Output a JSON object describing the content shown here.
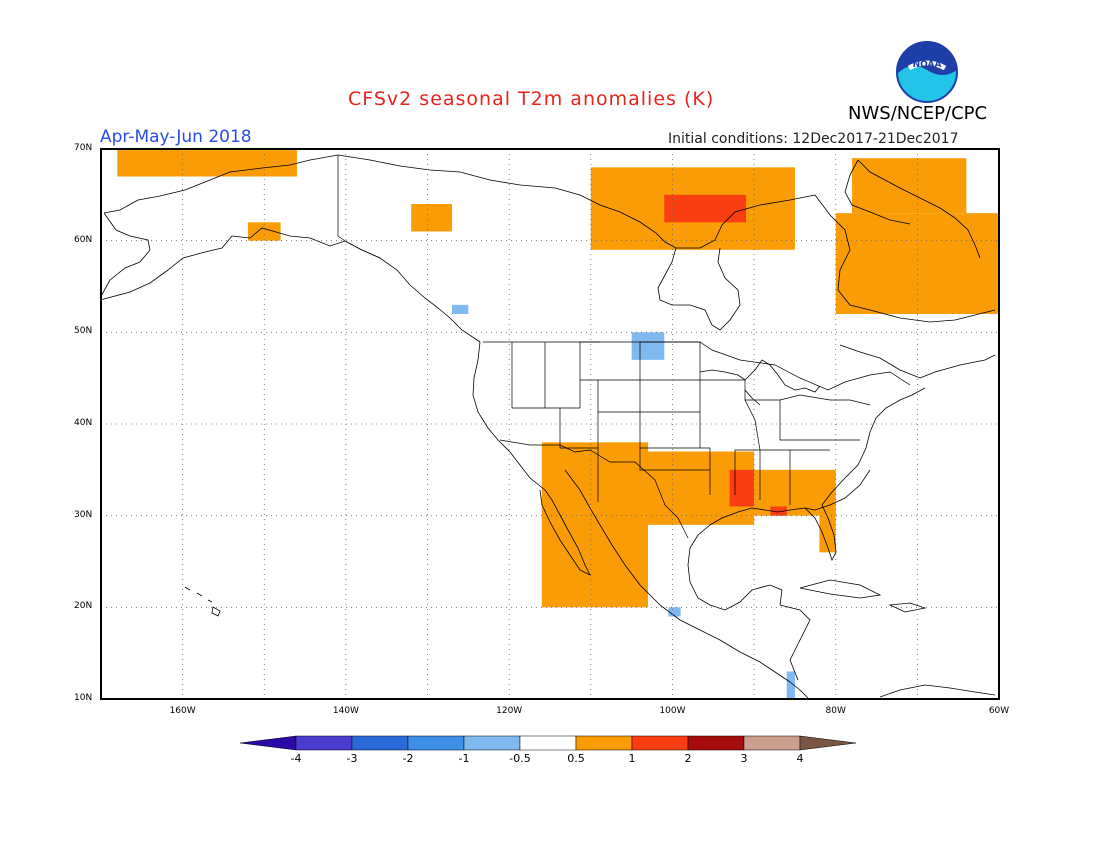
{
  "header": {
    "title": "CFSv2 seasonal T2m anomalies (K)",
    "period": "Apr-May-Jun 2018",
    "initial_conditions": "Initial conditions: 12Dec2017-21Dec2017",
    "agency": "NWS/NCEP/CPC",
    "logo_text": "NOAA"
  },
  "map": {
    "lon_range": [
      -170,
      -60
    ],
    "lat_range": [
      10,
      70
    ],
    "projection": "equirectangular",
    "grid": true,
    "lat_ticks": [
      "10N",
      "20N",
      "30N",
      "40N",
      "50N",
      "60N",
      "70N"
    ],
    "lon_ticks": [
      "160W",
      "140W",
      "120W",
      "100W",
      "80W",
      "60W"
    ]
  },
  "colorbar": {
    "labels": [
      "-4",
      "-3",
      "-2",
      "-1",
      "-0.5",
      "0.5",
      "1",
      "2",
      "3",
      "4"
    ],
    "colors": [
      "#2a0aa4",
      "#4b3cd0",
      "#2a6ad8",
      "#3f8fe8",
      "#7fb9f0",
      "#ffffff",
      "#f99c05",
      "#fa3e12",
      "#a80d0d",
      "#c9a08e",
      "#7a5544"
    ]
  },
  "anomaly_regions": [
    {
      "category": "0.5-1",
      "color": "#f99c05",
      "area": "Hudson Bay west / Nunavut",
      "lon": [
        -110,
        -85
      ],
      "lat": [
        59,
        68
      ]
    },
    {
      "category": "1-2",
      "color": "#fa3e12",
      "area": "Northwest of Hudson Bay",
      "lon": [
        -101,
        -91
      ],
      "lat": [
        62,
        65
      ]
    },
    {
      "category": "0.5-1",
      "color": "#f99c05",
      "area": "Labrador / Quebec",
      "lon": [
        -80,
        -60
      ],
      "lat": [
        52,
        63
      ]
    },
    {
      "category": "0.5-1",
      "color": "#f99c05",
      "area": "Baffin Island",
      "lon": [
        -78,
        -64
      ],
      "lat": [
        63,
        69
      ]
    },
    {
      "category": "0.5-1",
      "color": "#f99c05",
      "area": "Northern Alaska coast",
      "lon": [
        -168,
        -146
      ],
      "lat": [
        67,
        70
      ]
    },
    {
      "category": "0.5-1",
      "color": "#f99c05",
      "area": "Southern Alaska",
      "lon": [
        -152,
        -148
      ],
      "lat": [
        60,
        62
      ]
    },
    {
      "category": "0.5-1",
      "color": "#f99c05",
      "area": "Yukon",
      "lon": [
        -132,
        -127
      ],
      "lat": [
        61,
        64
      ]
    },
    {
      "category": "0.5-1",
      "color": "#f99c05",
      "area": "US Southwest and Mexico",
      "lon": [
        -116,
        -103
      ],
      "lat": [
        20,
        38
      ]
    },
    {
      "category": "0.5-1",
      "color": "#f99c05",
      "area": "Southern Plains",
      "lon": [
        -110,
        -90
      ],
      "lat": [
        29,
        37
      ]
    },
    {
      "category": "1-2",
      "color": "#fa3e12",
      "area": "Lower Mississippi Valley",
      "lon": [
        -93,
        -90
      ],
      "lat": [
        31,
        35
      ]
    },
    {
      "category": "0.5-1",
      "color": "#f99c05",
      "area": "Southeast US",
      "lon": [
        -90,
        -80
      ],
      "lat": [
        30,
        35
      ]
    },
    {
      "category": "0.5-1",
      "color": "#f99c05",
      "area": "Florida peninsula",
      "lon": [
        -82,
        -80
      ],
      "lat": [
        26,
        30
      ]
    },
    {
      "category": "1-2",
      "color": "#fa3e12",
      "area": "Florida panhandle",
      "lon": [
        -88,
        -86
      ],
      "lat": [
        30,
        31
      ]
    },
    {
      "category": "-0.5 to -1",
      "color": "#7fb9f0",
      "area": "North Dakota / Manitoba",
      "lon": [
        -105,
        -101
      ],
      "lat": [
        47,
        50
      ]
    },
    {
      "category": "-0.5 to -1",
      "color": "#7fb9f0",
      "area": "Pacific Northwest coast",
      "lon": [
        -127,
        -125
      ],
      "lat": [
        52,
        53
      ]
    },
    {
      "category": "-0.5 to -1",
      "color": "#7fb9f0",
      "area": "Western Mexico",
      "lon": [
        -100.5,
        -99
      ],
      "lat": [
        19,
        20
      ]
    },
    {
      "category": "-0.5 to -1",
      "color": "#7fb9f0",
      "area": "Central America",
      "lon": [
        -86,
        -85
      ],
      "lat": [
        10,
        13
      ]
    }
  ]
}
